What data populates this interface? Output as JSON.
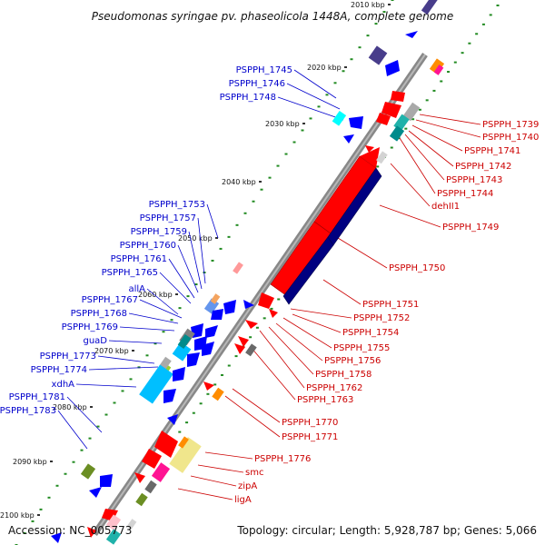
{
  "title": "Pseudomonas syringae pv. phaseolicola 1448A, complete genome",
  "accession": "Accession: NC_005773",
  "summary": "Topology: circular; Length: 5,928,787 bp; Genes: 5,066",
  "position_marks": [
    "2010 kbp",
    "2020 kbp",
    "2030 kbp",
    "2040 kbp",
    "2050 kbp",
    "2060 kbp",
    "2070 kbp",
    "2080 kbp",
    "2090 kbp",
    "2100 kbp"
  ],
  "colors": {
    "minus_strand_labels": "#0000cc",
    "plus_strand_labels": "#cc0000",
    "backbone": "#888888",
    "gene_red": "#ff0000",
    "gene_blue": "#0000ff",
    "gene_navy": "#000080",
    "gc_dots": "#228b22"
  },
  "left_labels": [
    "PSPPH_1745",
    "PSPPH_1746",
    "PSPPH_1748",
    "PSPPH_1753",
    "PSPPH_1757",
    "PSPPH_1759",
    "PSPPH_1760",
    "PSPPH_1761",
    "PSPPH_1765",
    "allA",
    "PSPPH_1767",
    "PSPPH_1768",
    "PSPPH_1769",
    "guaD",
    "PSPPH_1773",
    "PSPPH_1774",
    "xdhA",
    "PSPPH_1781",
    "PSPPH_1783"
  ],
  "right_labels": [
    "PSPPH_1739",
    "PSPPH_1740",
    "PSPPH_1741",
    "PSPPH_1742",
    "PSPPH_1743",
    "PSPPH_1744",
    "dehII1",
    "PSPPH_1749",
    "PSPPH_1750",
    "PSPPH_1751",
    "PSPPH_1752",
    "PSPPH_1754",
    "PSPPH_1755",
    "PSPPH_1756",
    "PSPPH_1758",
    "PSPPH_1762",
    "PSPPH_1763",
    "PSPPH_1770",
    "PSPPH_1771",
    "PSPPH_1776",
    "smc",
    "zipA",
    "ligA"
  ]
}
